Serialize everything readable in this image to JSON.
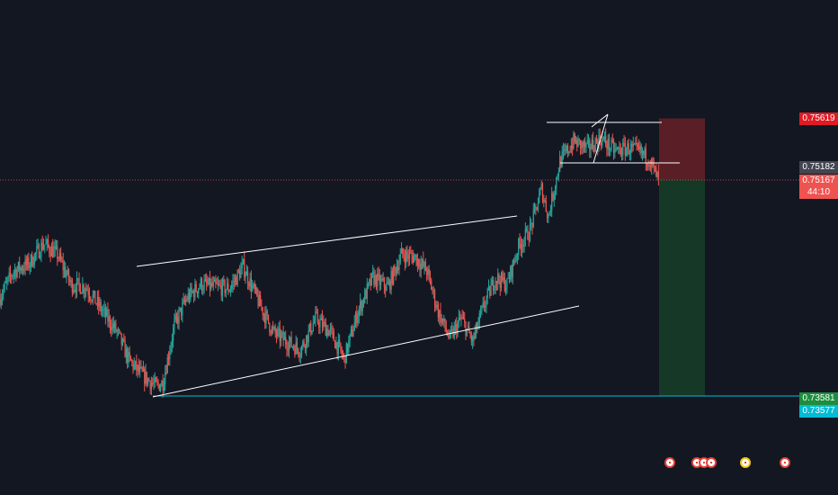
{
  "chart_data": {
    "type": "candlestick",
    "title": "",
    "colors": {
      "up": "#26a69a",
      "down": "#ef5350",
      "background": "#131722",
      "trendline": "#ffffff",
      "target_line": "#00bcd4",
      "current_price_line": "#ef5350",
      "stop_zone": "#5a1f26",
      "target_zone": "#163826"
    },
    "y_axis": {
      "min": 0.734,
      "max": 0.7585,
      "position": "right"
    },
    "price_labels": {
      "stop": "0.75619",
      "entry": "0.75182",
      "current": "0.75167",
      "countdown": "44:10",
      "target": "0.73581",
      "level": "0.73577"
    },
    "levels": {
      "stop": 0.75619,
      "entry": 0.75182,
      "current": 0.75167,
      "target": 0.73581,
      "level": 0.73577
    },
    "trendlines": [
      {
        "name": "channel-upper",
        "from": [
          10,
          0.7455
        ],
        "to": [
          400,
          0.7483
        ]
      },
      {
        "name": "channel-lower",
        "from": [
          12,
          0.7363
        ],
        "to": [
          445,
          0.7426
        ]
      },
      {
        "name": "range-top",
        "from": [
          450,
          0.7542
        ],
        "to": [
          540,
          0.7542
        ]
      },
      {
        "name": "range-bottom",
        "from": [
          457,
          0.7521
        ],
        "to": [
          550,
          0.7521
        ]
      }
    ],
    "position_tool": {
      "start_x": 545,
      "end_x": 570
    },
    "event_markers": [
      "flag-red",
      "flag-red",
      "flag-red",
      "flag-red",
      "flag-yellow",
      "flag-red"
    ]
  }
}
